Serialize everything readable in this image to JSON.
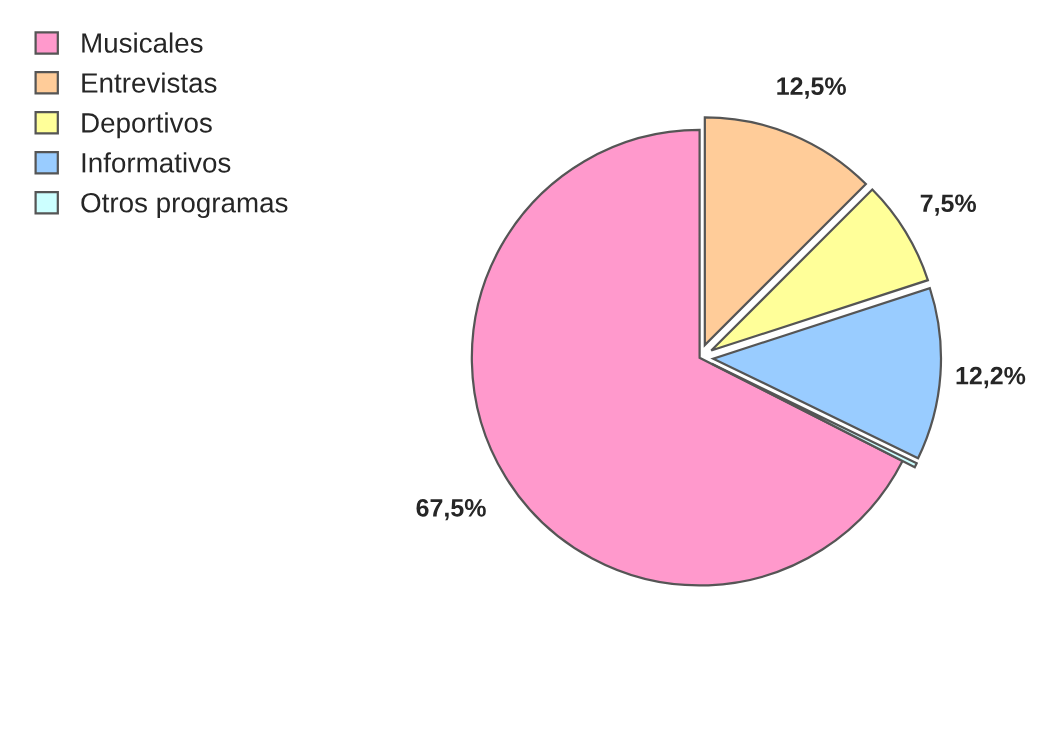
{
  "chart_data": {
    "type": "pie",
    "categories": [
      "Musicales",
      "Entrevistas",
      "Deportivos",
      "Informativos",
      "Otros programas"
    ],
    "values": [
      67.5,
      12.5,
      7.5,
      12.2,
      0.3
    ],
    "colors": [
      "#ff99cc",
      "#ffcc99",
      "#ffff99",
      "#99ccff",
      "#ccffff"
    ],
    "value_labels": [
      "67,5%",
      "12,5%",
      "7,5%",
      "12,2%",
      null
    ],
    "legend": "top left"
  }
}
